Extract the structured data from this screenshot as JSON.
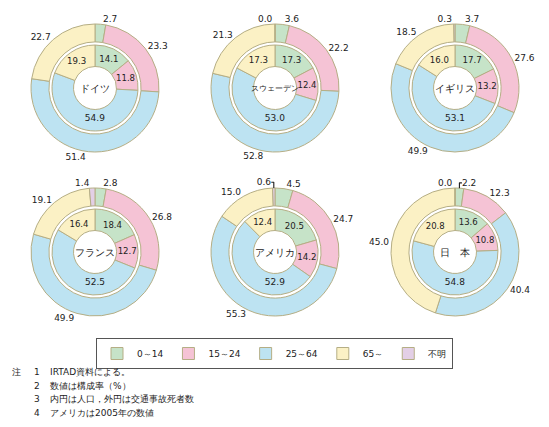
{
  "chart_data": [
    {
      "type": "pie",
      "title": "ドイツ",
      "categories": [
        "0～14",
        "15～24",
        "25～64",
        "65～"
      ],
      "colors": [
        "#c6e3c8",
        "#f5c3d5",
        "#bde3f2",
        "#fbf1c5"
      ],
      "series": [
        {
          "values": [
            14.1,
            11.8,
            54.9,
            19.3
          ],
          "value_labels": [
            "14.1",
            "11.8",
            "54.9",
            "19.3"
          ]
        },
        {
          "values": [
            2.7,
            23.3,
            51.4,
            22.7
          ],
          "value_labels": [
            "2.7",
            "23.3",
            "51.4",
            "22.7"
          ]
        }
      ],
      "data_labels": true,
      "legend": "bottom"
    },
    {
      "type": "pie",
      "title": "スウェーデン",
      "categories": [
        "0～14",
        "15～24",
        "25～64",
        "65～",
        "不明"
      ],
      "colors": [
        "#c6e3c8",
        "#f5c3d5",
        "#bde3f2",
        "#fbf1c5",
        "#e3cfe6"
      ],
      "series": [
        {
          "values": [
            17.3,
            12.4,
            53.0,
            17.3,
            null
          ],
          "value_labels": [
            "17.3",
            "12.4",
            "53.0",
            "17.3",
            null
          ]
        },
        {
          "values": [
            3.6,
            22.2,
            52.8,
            21.3,
            0.0
          ],
          "value_labels": [
            "3.6",
            "22.2",
            "52.8",
            "21.3",
            "0.0"
          ]
        }
      ],
      "data_labels": true,
      "legend": "bottom"
    },
    {
      "type": "pie",
      "title": "イギリス",
      "categories": [
        "0～14",
        "15～24",
        "25～64",
        "65～",
        "不明"
      ],
      "colors": [
        "#c6e3c8",
        "#f5c3d5",
        "#bde3f2",
        "#fbf1c5",
        "#e3cfe6"
      ],
      "series": [
        {
          "values": [
            17.7,
            13.2,
            53.1,
            16.0,
            null
          ],
          "value_labels": [
            "17.7",
            "13.2",
            "53.1",
            "16.0",
            null
          ]
        },
        {
          "values": [
            3.7,
            27.6,
            49.9,
            18.5,
            0.3
          ],
          "value_labels": [
            "3.7",
            "27.6",
            "49.9",
            "18.5",
            "0.3"
          ]
        }
      ],
      "data_labels": true,
      "legend": "bottom"
    },
    {
      "type": "pie",
      "title": "フランス",
      "categories": [
        "0～14",
        "15～24",
        "25～64",
        "65～",
        "不明"
      ],
      "colors": [
        "#c6e3c8",
        "#f5c3d5",
        "#bde3f2",
        "#fbf1c5",
        "#e3cfe6"
      ],
      "series": [
        {
          "values": [
            18.4,
            12.7,
            52.5,
            16.4,
            null
          ],
          "value_labels": [
            "18.4",
            "12.7",
            "52.5",
            "16.4",
            null
          ]
        },
        {
          "values": [
            2.8,
            26.8,
            49.9,
            19.1,
            1.4
          ],
          "value_labels": [
            "2.8",
            "26.8",
            "49.9",
            "19.1",
            "1.4"
          ]
        }
      ],
      "data_labels": true,
      "legend": "bottom"
    },
    {
      "type": "pie",
      "title": "アメリカ",
      "categories": [
        "0～14",
        "15～24",
        "25～64",
        "65～",
        "不明"
      ],
      "colors": [
        "#c6e3c8",
        "#f5c3d5",
        "#bde3f2",
        "#fbf1c5",
        "#e3cfe6"
      ],
      "series": [
        {
          "values": [
            20.5,
            14.2,
            52.9,
            12.4,
            null
          ],
          "value_labels": [
            "20.5",
            "14.2",
            "52.9",
            "12.4",
            null
          ]
        },
        {
          "values": [
            4.5,
            24.7,
            55.3,
            15.0,
            0.6
          ],
          "value_labels": [
            "4.5",
            "24.7",
            "55.3",
            "15.0",
            "0.6"
          ]
        }
      ],
      "data_labels": true,
      "legend": "bottom"
    },
    {
      "type": "pie",
      "title": "日　本",
      "categories": [
        "0～14",
        "15～24",
        "25～64",
        "65～",
        "不明"
      ],
      "colors": [
        "#c6e3c8",
        "#f5c3d5",
        "#bde3f2",
        "#fbf1c5",
        "#e3cfe6"
      ],
      "series": [
        {
          "values": [
            13.6,
            10.8,
            54.8,
            20.8,
            null
          ],
          "value_labels": [
            "13.6",
            "10.8",
            "54.8",
            "20.8",
            null
          ]
        },
        {
          "values": [
            2.2,
            12.3,
            40.4,
            45.0,
            0.0
          ],
          "value_labels": [
            "2.2",
            "12.3",
            "40.4",
            "45.0",
            "0.0"
          ]
        }
      ],
      "data_labels": true,
      "legend": "bottom"
    }
  ],
  "notes": {
    "label": "注",
    "items": [
      {
        "number": "1",
        "text": "IRTAD資料による。"
      },
      {
        "number": "2",
        "text": "数値は構成率（%）"
      },
      {
        "number": "3",
        "text": "内円は人口，外円は交通事故死者数"
      },
      {
        "number": "4",
        "text": "アメリカは2005年の数値"
      }
    ]
  }
}
